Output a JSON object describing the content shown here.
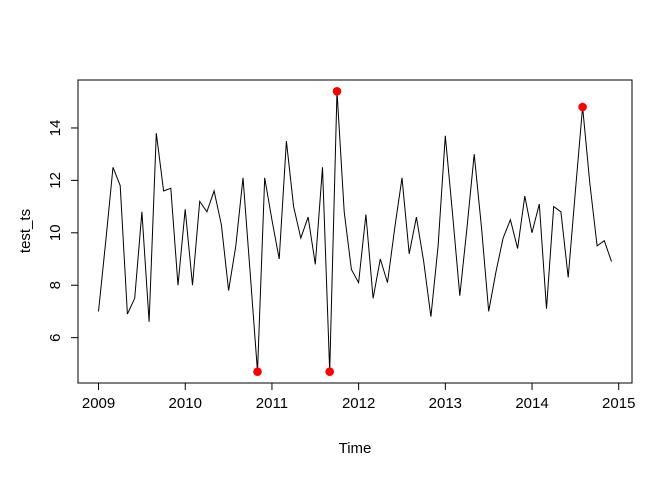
{
  "chart_data": {
    "type": "line",
    "title": "",
    "xlabel": "Time",
    "ylabel": "test_ts",
    "x_start_year": 2009,
    "frequency": 12,
    "x_ticks": [
      2009,
      2010,
      2011,
      2012,
      2013,
      2014,
      2015
    ],
    "y_ticks": [
      6,
      8,
      10,
      12,
      14
    ],
    "xlim": [
      2008.763,
      2015.153
    ],
    "ylim": [
      4.27,
      15.83
    ],
    "grid": "off",
    "legend": "none",
    "series": [
      {
        "name": "test_ts",
        "values": [
          7.0,
          9.7,
          12.5,
          11.8,
          6.9,
          7.5,
          10.8,
          6.6,
          13.8,
          11.6,
          11.7,
          8.0,
          10.9,
          8.0,
          11.2,
          10.8,
          11.6,
          10.3,
          7.8,
          9.5,
          12.1,
          8.4,
          4.7,
          12.1,
          10.5,
          9.0,
          13.5,
          11.0,
          9.8,
          10.6,
          8.8,
          12.5,
          4.7,
          15.4,
          10.8,
          8.6,
          8.1,
          10.7,
          7.5,
          9.0,
          8.1,
          10.2,
          12.1,
          9.2,
          10.6,
          8.9,
          6.8,
          9.5,
          13.7,
          10.7,
          7.6,
          10.2,
          13.0,
          10.2,
          7.0,
          8.5,
          9.8,
          10.5,
          9.4,
          11.4,
          10.0,
          11.1,
          7.1,
          11.0,
          10.8,
          8.3,
          11.6,
          14.8,
          11.9,
          9.5,
          9.7,
          8.9
        ]
      }
    ],
    "outliers": [
      {
        "year": 2010,
        "month": 11,
        "value": 4.7
      },
      {
        "year": 2011,
        "month": 9,
        "value": 4.7
      },
      {
        "year": 2011,
        "month": 10,
        "value": 15.4
      },
      {
        "year": 2014,
        "month": 8,
        "value": 14.8
      }
    ],
    "line_color": "#000000",
    "outlier_color": "#ff0000",
    "axis_color": "#000000",
    "background": "#ffffff"
  }
}
